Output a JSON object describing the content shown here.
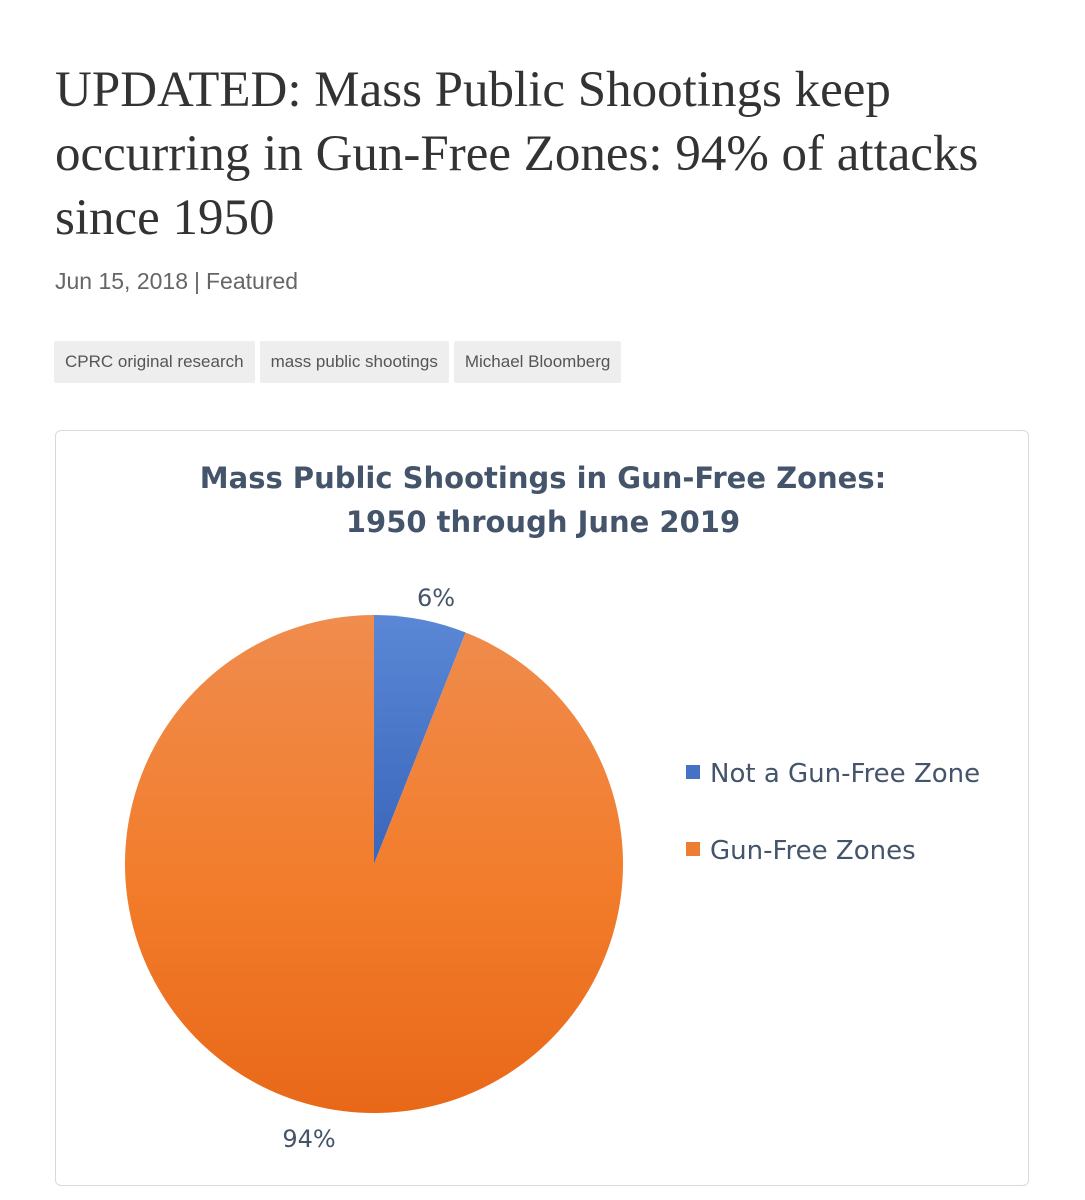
{
  "article": {
    "title": "UPDATED: Mass Public Shootings keep occurring in Gun-Free Zones: 94% of attacks since 1950",
    "date": "Jun 15, 2018",
    "separator": "|",
    "category": "Featured",
    "tags": [
      "CPRC original research",
      "mass public shootings",
      "Michael Bloomberg"
    ]
  },
  "chart_data": {
    "type": "pie",
    "title": [
      "Mass Public Shootings in Gun-Free Zones:",
      "1950 through June 2019"
    ],
    "categories": [
      "Not a Gun-Free Zone",
      "Gun-Free Zones"
    ],
    "values": [
      6,
      94
    ],
    "labels": [
      "6%",
      "94%"
    ],
    "colors": [
      "#4472c4",
      "#ed7d31"
    ],
    "legend": "right"
  }
}
